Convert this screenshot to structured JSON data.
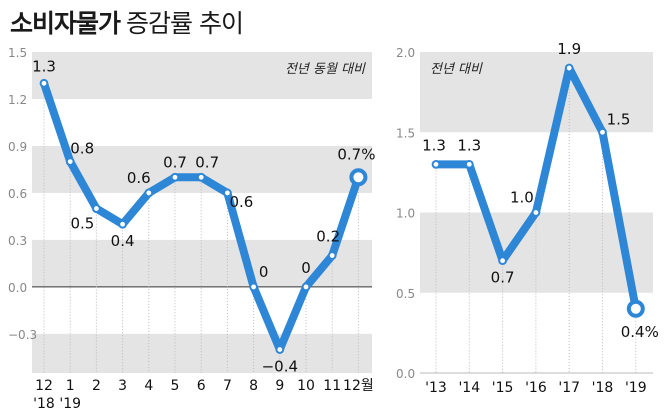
{
  "title": {
    "main": "소비자물가",
    "sub": "증감률 추이"
  },
  "chart_data": [
    {
      "type": "line",
      "note": "전년 동월 대비",
      "categories": [
        "12",
        "1",
        "2",
        "3",
        "4",
        "5",
        "6",
        "7",
        "8",
        "9",
        "10",
        "11",
        "12월"
      ],
      "year_labels": [
        "'18",
        "'19"
      ],
      "values": [
        1.3,
        0.8,
        0.5,
        0.4,
        0.6,
        0.7,
        0.7,
        0.6,
        0,
        -0.4,
        0,
        0.2,
        0.7
      ],
      "data_labels": [
        "1.3",
        "0.8",
        "0.5",
        "0.4",
        "0.6",
        "0.7",
        "0.7",
        "0.6",
        "0",
        "−0.4",
        "0",
        "0.2",
        "0.7%"
      ],
      "yticks": [
        "1.5",
        "1.2",
        "0.9",
        "0.6",
        "0.3",
        "0.0",
        "−0.3"
      ],
      "ylim": [
        -0.55,
        1.5
      ],
      "grid": true,
      "colors": {
        "line": "#2e86d6",
        "band": "#e4e4e4",
        "marker_fill": "#ffffff"
      }
    },
    {
      "type": "line",
      "note": "전년 대비",
      "categories": [
        "'13",
        "'14",
        "'15",
        "'16",
        "'17",
        "'18",
        "'19"
      ],
      "values": [
        1.3,
        1.3,
        0.7,
        1.0,
        1.9,
        1.5,
        0.4
      ],
      "data_labels": [
        "1.3",
        "1.3",
        "0.7",
        "1.0",
        "1.9",
        "1.5",
        "0.4%"
      ],
      "yticks": [
        "2.0",
        "1.5",
        "1.0",
        "0.5",
        "0.0"
      ],
      "ylim": [
        0,
        2.0
      ],
      "grid": true,
      "colors": {
        "line": "#2e86d6",
        "band": "#e4e4e4",
        "marker_fill": "#ffffff"
      }
    }
  ]
}
